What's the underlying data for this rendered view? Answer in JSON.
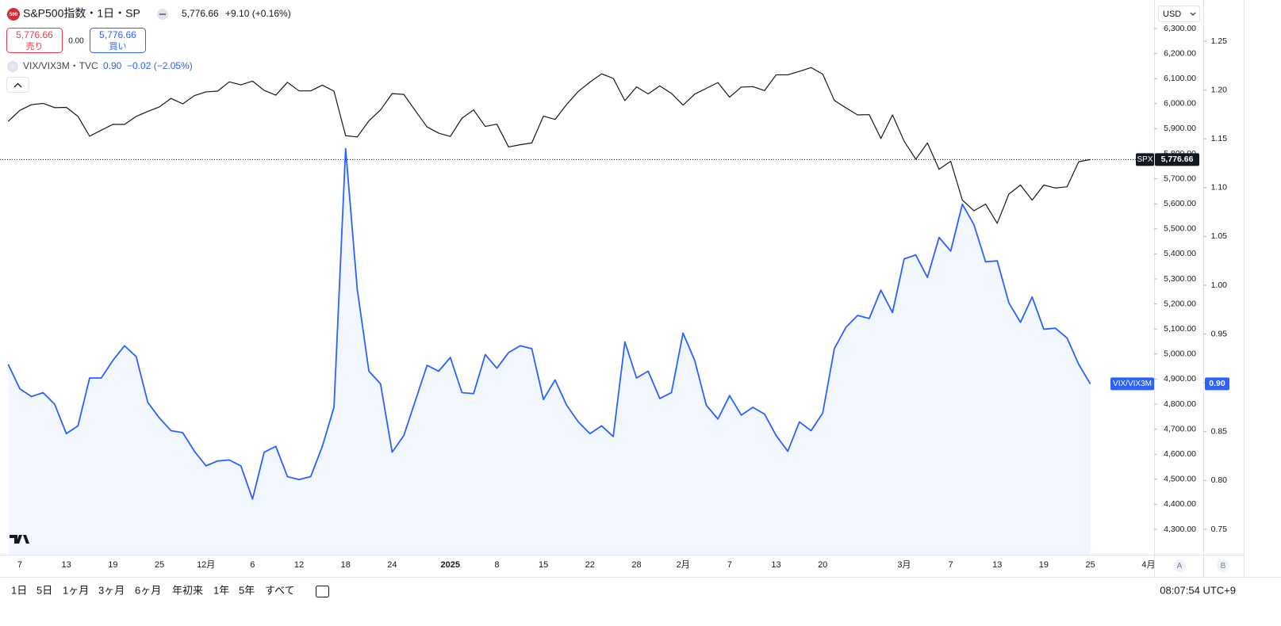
{
  "header": {
    "logo": "500",
    "symbol": "S&P500指数・1日・SP",
    "price": "5,776.66",
    "change": "+9.10 (+0.16%)",
    "sell_price": "5,776.66",
    "sell_label": "売り",
    "spread": "0.00",
    "buy_price": "5,776.66",
    "buy_label": "買い",
    "indicator_icon": "V",
    "indicator": "VIX/VIX3M・TVC",
    "indicator_value": "0.90",
    "indicator_change": "−0.02 (−2.05%)",
    "currency": "USD"
  },
  "toolbar": {
    "ranges": [
      "1日",
      "5日",
      "1ヶ月",
      "3ヶ月",
      "6ヶ月",
      "年初来",
      "1年",
      "5年",
      "すべて"
    ],
    "clock": "08:07:54 UTC+9",
    "axis_buttons": [
      "A",
      "B"
    ]
  },
  "chart_data": {
    "type": "line",
    "categories": [
      null,
      "7",
      null,
      null,
      null,
      "13",
      null,
      null,
      null,
      "19",
      null,
      null,
      null,
      "25",
      null,
      null,
      null,
      "12月",
      null,
      null,
      null,
      "6",
      null,
      null,
      null,
      "12",
      null,
      null,
      null,
      "18",
      null,
      null,
      null,
      "24",
      null,
      null,
      null,
      null,
      "2025",
      null,
      null,
      null,
      "8",
      null,
      null,
      null,
      "15",
      null,
      null,
      null,
      "22",
      null,
      null,
      null,
      "28",
      null,
      null,
      null,
      "2月",
      null,
      null,
      null,
      "7",
      null,
      null,
      null,
      "13",
      null,
      null,
      null,
      "20",
      null,
      null,
      null,
      null,
      null,
      null,
      "3月",
      null,
      null,
      null,
      "7",
      null,
      null,
      null,
      "13",
      null,
      null,
      null,
      "19",
      null,
      null,
      null,
      "25",
      null,
      null,
      null,
      null,
      "4月"
    ],
    "series": [
      {
        "name": "SPX",
        "color": "#131722",
        "axis": "y",
        "last_label": "5,776.66",
        "values": [
          5929,
          5973,
          5996,
          6001,
          5984,
          5985,
          5949,
          5870,
          5894,
          5917,
          5917,
          5949,
          5969,
          5987,
          6021,
          5999,
          6032,
          6047,
          6050,
          6087,
          6075,
          6090,
          6053,
          6034,
          6085,
          6051,
          6051,
          6074,
          6050,
          5872,
          5867,
          5931,
          5975,
          6040,
          6037,
          5971,
          5907,
          5882,
          5869,
          5942,
          5975,
          5909,
          5918,
          5827,
          5836,
          5843,
          5950,
          5937,
          5997,
          6049,
          6086,
          6119,
          6101,
          6012,
          6067,
          6039,
          6071,
          6041,
          5994,
          6038,
          6061,
          6084,
          6026,
          6066,
          6068,
          6052,
          6115,
          6115,
          6129,
          6144,
          6118,
          6013,
          5983,
          5955,
          5956,
          5861,
          5955,
          5850,
          5778,
          5843,
          5738,
          5770,
          5615,
          5572,
          5599,
          5522,
          5639,
          5675,
          5615,
          5675,
          5663,
          5668,
          5768,
          5776.66,
          null,
          null,
          null,
          null,
          null
        ]
      },
      {
        "name": "VIX/VIX3M",
        "color": "#2962ff",
        "axis": "y2",
        "area": true,
        "last_label": "0.90",
        "values": [
          0.919,
          0.894,
          0.886,
          0.89,
          0.878,
          0.848,
          0.856,
          0.905,
          0.905,
          0.923,
          0.938,
          0.927,
          0.88,
          0.864,
          0.851,
          0.849,
          0.83,
          0.815,
          0.82,
          0.821,
          0.815,
          0.781,
          0.829,
          0.835,
          0.804,
          0.801,
          0.804,
          0.835,
          0.875,
          1.14,
          0.996,
          0.912,
          0.899,
          0.829,
          0.846,
          0.882,
          0.918,
          0.912,
          0.926,
          0.89,
          0.889,
          0.929,
          0.915,
          0.931,
          0.938,
          0.935,
          0.883,
          0.903,
          0.877,
          0.86,
          0.848,
          0.856,
          0.845,
          0.942,
          0.905,
          0.912,
          0.884,
          0.89,
          0.951,
          0.923,
          0.877,
          0.863,
          0.887,
          0.867,
          0.875,
          0.868,
          0.846,
          0.83,
          0.86,
          0.851,
          0.869,
          0.935,
          0.957,
          0.969,
          0.966,
          0.995,
          0.972,
          1.027,
          1.031,
          1.008,
          1.049,
          1.035,
          1.083,
          1.062,
          1.024,
          1.025,
          0.982,
          0.962,
          0.988,
          0.955,
          0.956,
          0.946,
          0.919,
          0.899,
          null,
          null,
          null,
          null,
          null
        ]
      }
    ],
    "ylim": [
      4198.7,
      6413.9
    ],
    "yticks": [
      {
        "value": 4300,
        "label": "4,300.00"
      },
      {
        "value": 4400,
        "label": "4,400.00"
      },
      {
        "value": 4500,
        "label": "4,500.00"
      },
      {
        "value": 4600,
        "label": "4,600.00"
      },
      {
        "value": 4700,
        "label": "4,700.00"
      },
      {
        "value": 4800,
        "label": "4,800.00"
      },
      {
        "value": 4900,
        "label": "4,900.00"
      },
      {
        "value": 5000,
        "label": "5,000.00"
      },
      {
        "value": 5100,
        "label": "5,100.00"
      },
      {
        "value": 5200,
        "label": "5,200.00"
      },
      {
        "value": 5300,
        "label": "5,300.00"
      },
      {
        "value": 5400,
        "label": "5,400.00"
      },
      {
        "value": 5500,
        "label": "5,500.00"
      },
      {
        "value": 5600,
        "label": "5,600.00"
      },
      {
        "value": 5700,
        "label": "5,700.00"
      },
      {
        "value": 5800,
        "label": "5,800.00"
      },
      {
        "value": 5900,
        "label": "5,900.00"
      },
      {
        "value": 6000,
        "label": "6,000.00"
      },
      {
        "value": 6100,
        "label": "6,100.00"
      },
      {
        "value": 6200,
        "label": "6,200.00"
      },
      {
        "value": 6300,
        "label": "6,300.00"
      }
    ],
    "y2lim": [
      0.724,
      1.2922
    ],
    "y2ticks": [
      0.75,
      {
        "value": 0.8,
        "label": "0.80"
      },
      0.85,
      {
        "value": 0.9,
        "label": "0.90"
      },
      0.95,
      {
        "value": 1.0,
        "label": "1.00"
      },
      1.05,
      {
        "value": 1.1,
        "label": "1.10"
      },
      1.15,
      {
        "value": 1.2,
        "label": "1.20"
      },
      1.25
    ]
  }
}
